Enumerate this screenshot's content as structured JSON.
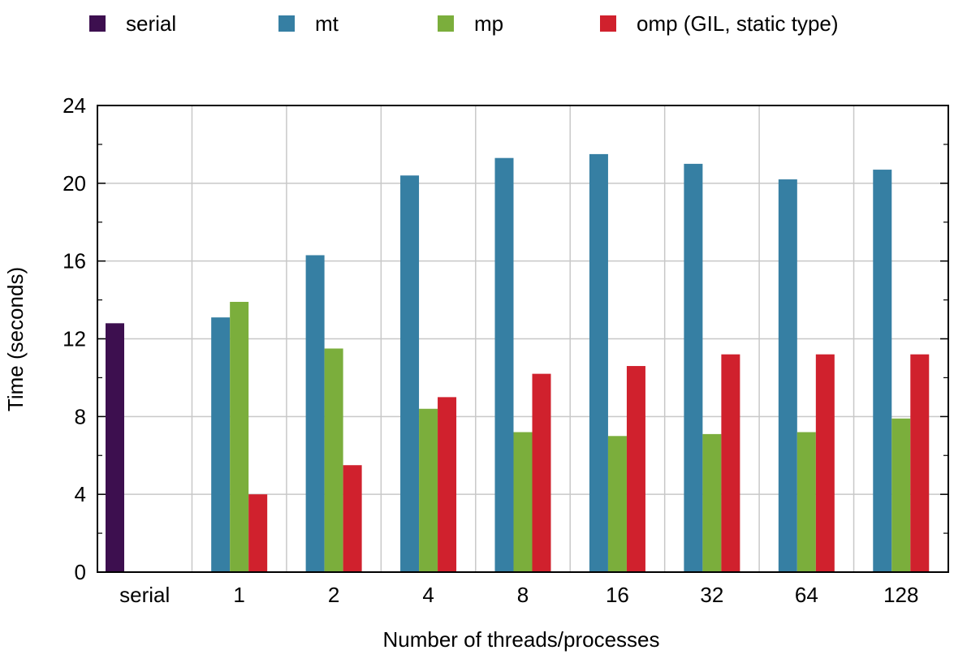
{
  "chart_data": {
    "type": "bar",
    "categories": [
      "serial",
      "1",
      "2",
      "4",
      "8",
      "16",
      "32",
      "64",
      "128"
    ],
    "series": [
      {
        "name": "serial",
        "color": "#3d0f4f",
        "values": [
          12.8,
          null,
          null,
          null,
          null,
          null,
          null,
          null,
          null
        ]
      },
      {
        "name": "mt",
        "color": "#367fa3",
        "values": [
          null,
          13.1,
          16.3,
          20.4,
          21.3,
          21.5,
          21.0,
          20.2,
          20.7
        ]
      },
      {
        "name": "mp",
        "color": "#7bae3c",
        "values": [
          null,
          13.9,
          11.5,
          8.4,
          7.2,
          7.0,
          7.1,
          7.2,
          7.9
        ]
      },
      {
        "name": "omp (GIL, static type)",
        "color": "#d0212d",
        "values": [
          null,
          4.0,
          5.5,
          9.0,
          10.2,
          10.6,
          11.2,
          11.2,
          11.2
        ]
      }
    ],
    "xlabel": "Number of threads/processes",
    "ylabel": "Time (seconds)",
    "ylim": [
      0,
      24
    ],
    "yticks": [
      0,
      4,
      8,
      12,
      16,
      20,
      24
    ],
    "grid": true,
    "legend_position": "top"
  }
}
